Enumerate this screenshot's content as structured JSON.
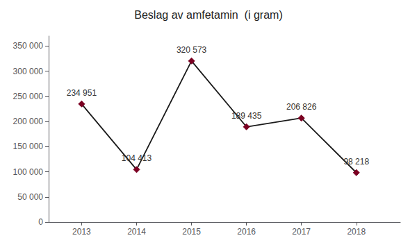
{
  "chart_data": {
    "type": "line",
    "title": "Beslag av amfetamin  (i gram)",
    "x": [
      2013,
      2014,
      2015,
      2016,
      2017,
      2018
    ],
    "values": [
      234951,
      104413,
      320573,
      189435,
      206826,
      98218
    ],
    "value_labels": [
      "234 951",
      "104 413",
      "320 573",
      "189 435",
      "206 826",
      "98 218"
    ],
    "data_labels": true,
    "color": "#1a1a1a",
    "colors": [
      "#7b0022",
      "#7b0022",
      "#7b0022",
      "#7b0022",
      "#7b0022",
      "#7b0022"
    ],
    "marker": "diamond",
    "xlim": [
      2012.4,
      2018.8
    ],
    "xticks": [
      2013,
      2014,
      2015,
      2016,
      2017,
      2018
    ],
    "ylim": [
      0,
      370000
    ],
    "yticks": [
      0,
      {
        "value": 50000,
        "label": "50 000"
      },
      {
        "value": 100000,
        "label": "100 000"
      },
      {
        "value": 150000,
        "label": "150 000"
      },
      {
        "value": 200000,
        "label": "200 000"
      },
      {
        "value": 250000,
        "label": "250 000"
      },
      {
        "value": 300000,
        "label": "300 000"
      },
      {
        "value": 350000,
        "label": "350 000"
      }
    ],
    "grid": false
  }
}
